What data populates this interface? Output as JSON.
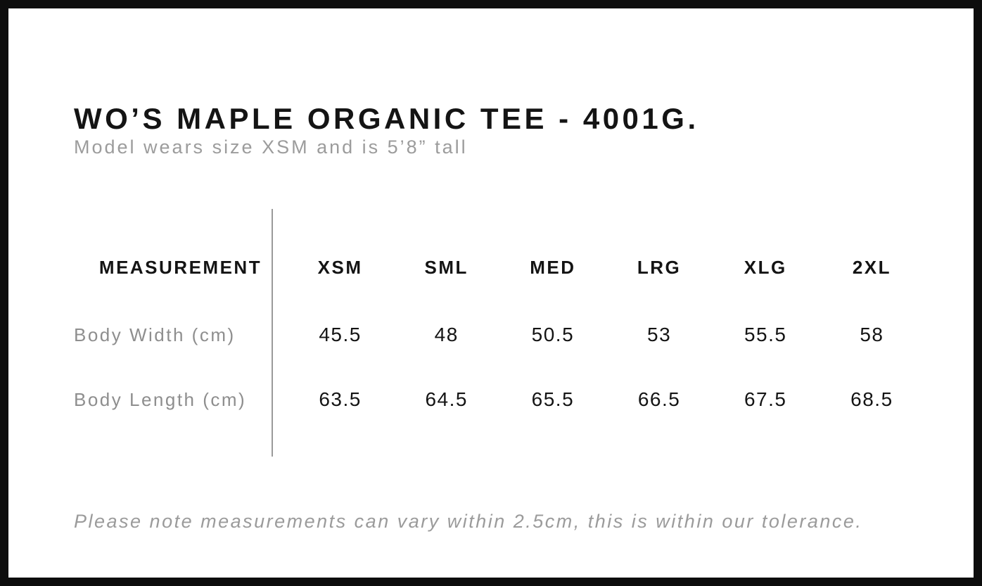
{
  "page": {
    "title": "WO’S MAPLE ORGANIC TEE - 4001G.",
    "subtitle": "Model wears size XSM and is 5’8” tall",
    "footnote": "Please note measurements can vary within 2.5cm, this is within our tolerance."
  },
  "size_chart": {
    "measurement_header": "MEASUREMENT",
    "size_headers": [
      "XSM",
      "SML",
      "MED",
      "LRG",
      "XLG",
      "2XL"
    ],
    "rows": [
      {
        "label": "Body Width (cm)",
        "values": [
          "45.5",
          "48",
          "50.5",
          "53",
          "55.5",
          "58"
        ]
      },
      {
        "label": "Body Length (cm)",
        "values": [
          "63.5",
          "64.5",
          "65.5",
          "66.5",
          "67.5",
          "68.5"
        ]
      }
    ]
  },
  "chart_data": {
    "type": "table",
    "columns": [
      "MEASUREMENT",
      "XSM",
      "SML",
      "MED",
      "LRG",
      "XLG",
      "2XL"
    ],
    "rows": [
      [
        "Body Width (cm)",
        45.5,
        48,
        50.5,
        53,
        55.5,
        58
      ],
      [
        "Body Length (cm)",
        63.5,
        64.5,
        65.5,
        66.5,
        67.5,
        68.5
      ]
    ]
  },
  "colors": {
    "border": "#0d0d0d",
    "text_primary": "#141414",
    "text_muted": "#9b9b9b",
    "divider": "#9a9a9a"
  }
}
